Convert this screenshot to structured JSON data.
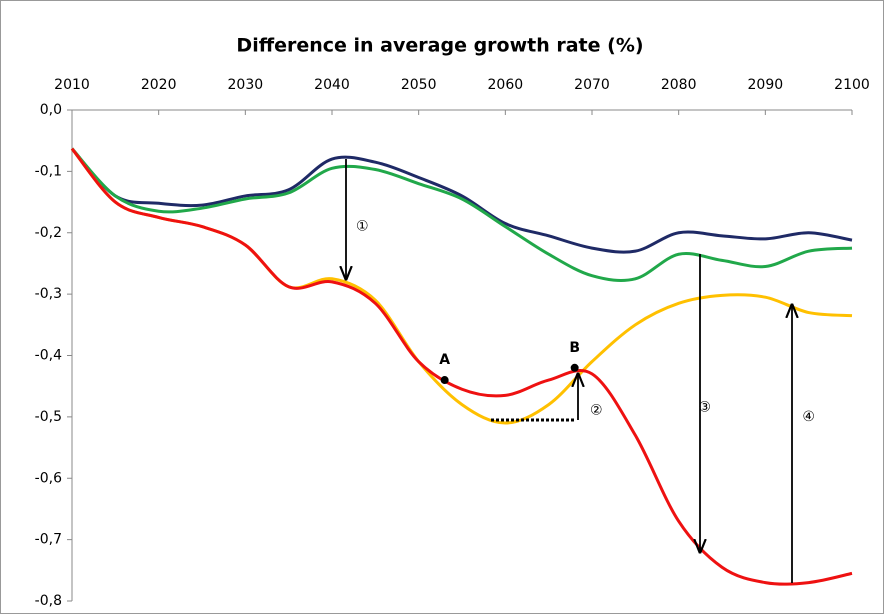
{
  "chart_data": {
    "type": "line",
    "title": "Difference in average growth rate (%)",
    "x": [
      2010,
      2015,
      2020,
      2025,
      2030,
      2035,
      2040,
      2045,
      2050,
      2055,
      2060,
      2065,
      2070,
      2075,
      2080,
      2085,
      2090,
      2095,
      2100
    ],
    "xlim": [
      2010,
      2100
    ],
    "xticks": [
      2010,
      2020,
      2030,
      2040,
      2050,
      2060,
      2070,
      2080,
      2090,
      2100
    ],
    "ylim": [
      -0.8,
      0
    ],
    "yticks": [
      {
        "value": 0,
        "label": "0,0"
      },
      {
        "value": -0.1,
        "label": "-0,1"
      },
      {
        "value": -0.2,
        "label": "-0,2"
      },
      {
        "value": -0.3,
        "label": "-0,3"
      },
      {
        "value": -0.4,
        "label": "-0,4"
      },
      {
        "value": -0.5,
        "label": "-0,5"
      },
      {
        "value": -0.6,
        "label": "-0,6"
      },
      {
        "value": -0.7,
        "label": "-0,7"
      },
      {
        "value": -0.8,
        "label": "-0,8"
      }
    ],
    "series": [
      {
        "color": "#1f2a66",
        "values": [
          -0.063,
          -0.14,
          -0.152,
          -0.155,
          -0.14,
          -0.13,
          -0.08,
          -0.085,
          -0.11,
          -0.14,
          -0.185,
          -0.205,
          -0.225,
          -0.23,
          -0.2,
          -0.205,
          -0.21,
          -0.2,
          -0.212
        ]
      },
      {
        "color": "#21a84a",
        "values": [
          -0.063,
          -0.14,
          -0.165,
          -0.16,
          -0.145,
          -0.135,
          -0.095,
          -0.097,
          -0.12,
          -0.145,
          -0.19,
          -0.235,
          -0.27,
          -0.275,
          -0.235,
          -0.245,
          -0.255,
          -0.23,
          -0.225
        ]
      },
      {
        "color": "#ffc000",
        "values": [
          -0.063,
          -0.15,
          -0.175,
          -0.19,
          -0.22,
          -0.288,
          -0.275,
          -0.31,
          -0.41,
          -0.48,
          -0.51,
          -0.48,
          -0.41,
          -0.35,
          -0.315,
          -0.302,
          -0.305,
          -0.33,
          -0.335
        ]
      },
      {
        "color": "#ee1111",
        "values": [
          -0.063,
          -0.15,
          -0.175,
          -0.19,
          -0.22,
          -0.288,
          -0.28,
          -0.315,
          -0.41,
          -0.455,
          -0.465,
          -0.44,
          -0.43,
          -0.53,
          -0.67,
          -0.745,
          -0.77,
          -0.77,
          -0.755
        ]
      }
    ],
    "annotations": [
      {
        "text": "A",
        "x": 2053,
        "y": -0.44
      },
      {
        "text": "B",
        "x": 2068,
        "y": -0.42
      },
      {
        "text": "①",
        "x": 2043.5,
        "y": -0.19
      },
      {
        "text": "②",
        "x": 2070.5,
        "y": -0.49
      },
      {
        "text": "③",
        "x": 2083,
        "y": -0.485
      },
      {
        "text": "④",
        "x": 2095,
        "y": -0.5
      }
    ]
  }
}
